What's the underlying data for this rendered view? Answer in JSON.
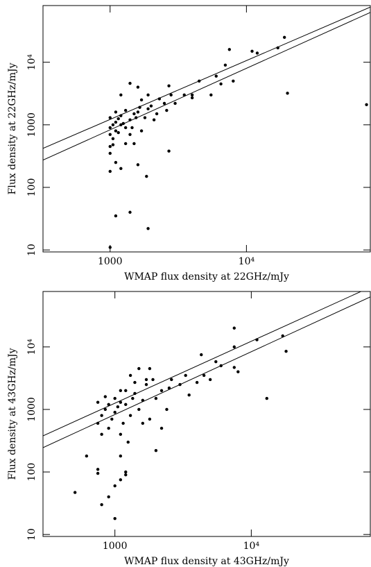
{
  "chart_data": [
    {
      "type": "scatter",
      "xlabel": "WMAP flux density at 22GHz/mJy",
      "ylabel": "Flux density at 22GHz/mJy",
      "xscale": "log",
      "yscale": "log",
      "xlim": [
        322,
        81000
      ],
      "ylim": [
        9.3,
        80500
      ],
      "xticks": [
        1000,
        {
          "value": 10000,
          "label": "10⁴"
        }
      ],
      "yticks": [
        10,
        100,
        1000,
        {
          "value": 10000,
          "label": "10⁴"
        }
      ],
      "series": [
        {
          "color": "#000000",
          "x": [
            1000,
            1100,
            1400,
            1900,
            1850,
            1600,
            1100,
            1200,
            1000,
            1000,
            1000,
            1050,
            1000,
            1100,
            1000,
            1050,
            1100,
            1000,
            1200,
            1100,
            1300,
            1200,
            1300,
            1400,
            1500,
            1600,
            1400,
            1500,
            1700,
            1800,
            1900,
            2000,
            2200,
            2500,
            2800,
            3000,
            2600,
            3500,
            4000,
            4500,
            5500,
            6000,
            7000,
            7500,
            8000,
            11000,
            12000,
            17000,
            19000,
            20000,
            76000,
            1400,
            1600,
            1200,
            2700,
            1900,
            1700,
            2100,
            1300,
            1150,
            1250,
            1450,
            1550,
            1650,
            2300,
            2700,
            6500,
            4000,
            1050,
            1150
          ],
          "values": [
            11,
            35,
            40,
            22,
            150,
            230,
            250,
            200,
            180,
            350,
            450,
            600,
            700,
            800,
            900,
            1000,
            1100,
            1300,
            1400,
            1600,
            1700,
            1000,
            900,
            1200,
            1500,
            1600,
            700,
            500,
            800,
            1300,
            1800,
            2000,
            1500,
            2200,
            3000,
            2200,
            1700,
            3000,
            2700,
            5000,
            3000,
            6000,
            9000,
            16000,
            5000,
            15000,
            14000,
            17000,
            25000,
            3200,
            2100,
            4600,
            4000,
            3000,
            380,
            3000,
            2500,
            1200,
            500,
            750,
            1050,
            900,
            1300,
            1900,
            2600,
            4200,
            4500,
            3000,
            480,
            1250
          ]
        },
        {
          "type": "line",
          "color": "#000000",
          "x": [
            322,
            81000
          ],
          "values": [
            420,
            76000
          ]
        },
        {
          "type": "line",
          "color": "#000000",
          "x": [
            322,
            81000
          ],
          "values": [
            273,
            62500
          ]
        }
      ]
    },
    {
      "type": "scatter",
      "xlabel": "WMAP flux density at 43GHz/mJy",
      "ylabel": "Flux density at 43GHz/mJy",
      "xscale": "log",
      "yscale": "log",
      "xlim": [
        297,
        74600
      ],
      "ylim": [
        9.3,
        77000
      ],
      "xticks": [
        1000,
        {
          "value": 10000,
          "label": "10⁴"
        }
      ],
      "yticks": [
        10,
        100,
        1000,
        {
          "value": 10000,
          "label": "10⁴"
        }
      ],
      "series": [
        {
          "color": "#000000",
          "x": [
            510,
            620,
            750,
            750,
            800,
            900,
            1000,
            1000,
            1100,
            1100,
            1200,
            1200,
            2000,
            750,
            750,
            800,
            850,
            850,
            900,
            950,
            1000,
            1050,
            1100,
            1100,
            1150,
            1200,
            1200,
            1300,
            1350,
            1400,
            1500,
            1500,
            1600,
            1700,
            1800,
            1800,
            1900,
            2000,
            2200,
            2200,
            2500,
            2600,
            3000,
            3500,
            4000,
            4300,
            4500,
            5000,
            5500,
            6000,
            7500,
            7500,
            8000,
            7500,
            11000,
            13000,
            17000,
            18000,
            1000,
            900,
            1300,
            1700,
            2400,
            1100,
            1600,
            3300,
            800,
            1250,
            1400
          ],
          "values": [
            47,
            180,
            95,
            110,
            30,
            40,
            18,
            60,
            75,
            180,
            100,
            90,
            220,
            600,
            1300,
            800,
            1000,
            1600,
            500,
            700,
            900,
            1100,
            1300,
            400,
            600,
            1200,
            2000,
            800,
            1500,
            1800,
            1000,
            4500,
            1400,
            2500,
            4500,
            700,
            3000,
            1500,
            2000,
            500,
            2200,
            3000,
            2500,
            1700,
            2700,
            7500,
            3500,
            3000,
            5800,
            5000,
            20000,
            10000,
            4000,
            4700,
            13000,
            1500,
            15000,
            8500,
            1500,
            1200,
            3500,
            3000,
            1000,
            2000,
            600,
            3500,
            400,
            300,
            2700
          ]
        },
        {
          "type": "line",
          "color": "#000000",
          "x": [
            297,
            74600
          ],
          "values": [
            378,
            90000
          ]
        },
        {
          "type": "line",
          "color": "#000000",
          "x": [
            297,
            74600
          ],
          "values": [
            245,
            63000
          ]
        }
      ]
    }
  ]
}
